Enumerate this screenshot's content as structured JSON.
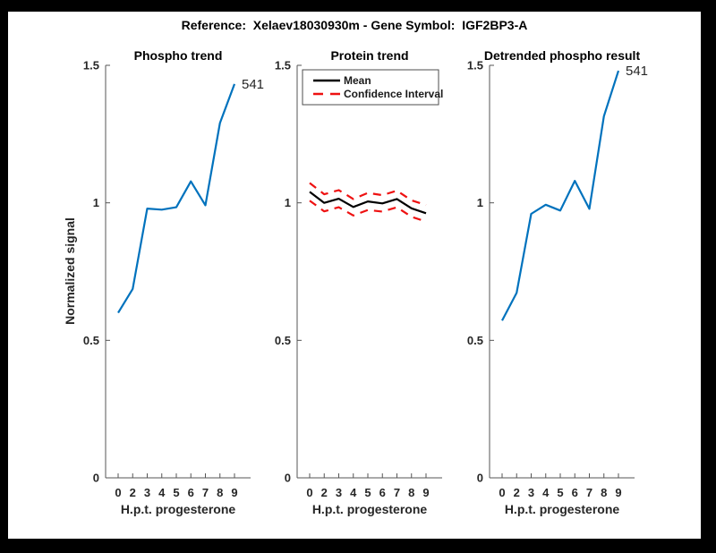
{
  "figure": {
    "title": "Reference:  Xelaev18030930m - Gene Symbol:  IGF2BP3-A",
    "background": "#ffffff",
    "frame_color": "#000000"
  },
  "axis_shared": {
    "ylabel": "Normalized signal",
    "xlabel": "H.p.t. progesterone",
    "ylim": [
      0,
      1.5
    ],
    "ytick_labels": [
      "0",
      "0.5",
      "1",
      "1.5"
    ],
    "ytick_values": [
      0,
      0.5,
      1,
      1.5
    ],
    "xtick_labels": [
      "0",
      "2",
      "3",
      "4",
      "5",
      "6",
      "7",
      "8",
      "9"
    ],
    "grid": "off"
  },
  "colors": {
    "blue_line": "#0072BD",
    "mean_line": "#000000",
    "ci_line": "#ee1111"
  },
  "chart_data": [
    {
      "type": "line",
      "title": "Phospho trend",
      "xlabel": "H.p.t. progesterone",
      "ylabel": "Normalized signal",
      "ylim": [
        0,
        1.5
      ],
      "x_labels": [
        "0",
        "2",
        "3",
        "4",
        "5",
        "6",
        "7",
        "8",
        "9"
      ],
      "series": [
        {
          "name": "phospho-trend",
          "color": "#0072BD",
          "dash": "solid",
          "values": [
            0.6,
            0.687,
            0.979,
            0.975,
            0.984,
            1.078,
            0.991,
            1.29,
            1.432
          ]
        }
      ],
      "annotation": {
        "text": "541",
        "at_point": 8
      },
      "legend": null
    },
    {
      "type": "line",
      "title": "Protein trend",
      "xlabel": "H.p.t. progesterone",
      "ylim": [
        0,
        1.5
      ],
      "x_labels": [
        "0",
        "2",
        "3",
        "4",
        "5",
        "6",
        "7",
        "8",
        "9"
      ],
      "series": [
        {
          "name": "Mean",
          "color": "#000000",
          "dash": "solid",
          "values": [
            1.04,
            1.0,
            1.015,
            0.985,
            1.005,
            0.998,
            1.014,
            0.98,
            0.962
          ]
        },
        {
          "name": "CI-upper",
          "color": "#ee1111",
          "dash": "dashed",
          "values": [
            1.072,
            1.031,
            1.046,
            1.014,
            1.036,
            1.028,
            1.044,
            1.009,
            0.992
          ]
        },
        {
          "name": "CI-lower",
          "color": "#ee1111",
          "dash": "dashed",
          "values": [
            1.008,
            0.969,
            0.984,
            0.954,
            0.974,
            0.968,
            0.984,
            0.949,
            0.932
          ]
        }
      ],
      "annotation": null,
      "legend": {
        "position": "top-left",
        "entries": [
          {
            "label": "Mean",
            "color": "#000000",
            "dash": "solid"
          },
          {
            "label": "Confidence Interval",
            "color": "#ee1111",
            "dash": "dashed"
          }
        ]
      }
    },
    {
      "type": "line",
      "title": "Detrended phospho result",
      "xlabel": "H.p.t. progesterone",
      "ylim": [
        0,
        1.5
      ],
      "x_labels": [
        "0",
        "2",
        "3",
        "4",
        "5",
        "6",
        "7",
        "8",
        "9"
      ],
      "series": [
        {
          "name": "detrended-phospho",
          "color": "#0072BD",
          "dash": "solid",
          "values": [
            0.572,
            0.673,
            0.96,
            0.993,
            0.972,
            1.08,
            0.978,
            1.315,
            1.48
          ]
        }
      ],
      "annotation": {
        "text": "541",
        "at_point": 8
      },
      "legend": null
    }
  ]
}
